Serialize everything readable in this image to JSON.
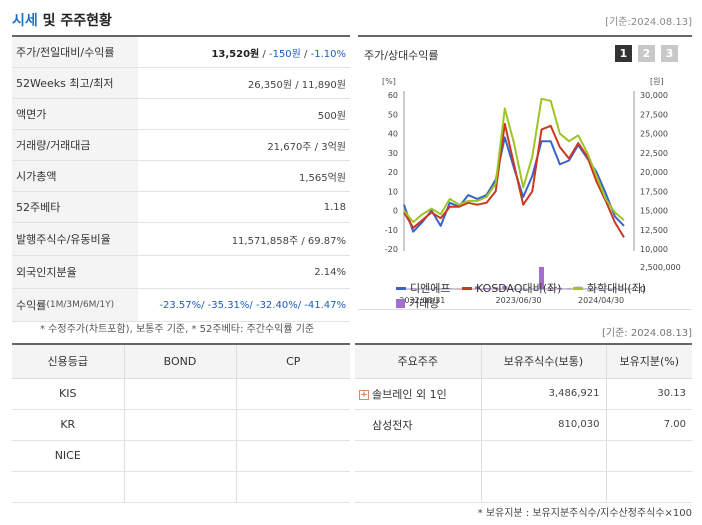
{
  "header": {
    "title_blue": "시세",
    "title_rest": " 및 주주현황",
    "date": "[기준:2024.08.13]"
  },
  "quote": [
    {
      "label": "주가/전일대비/수익률",
      "price": "13,520원",
      "sep1": " / ",
      "change": "-150원",
      "sep2": " / ",
      "rate": "-1.10%"
    },
    {
      "label": "52Weeks 최고/최저",
      "value": "26,350원 / 11,890원"
    },
    {
      "label": "액면가",
      "value": "500원"
    },
    {
      "label": "거래량/거래대금",
      "value": "21,670주 / 3억원"
    },
    {
      "label": "시가총액",
      "value": "1,565억원"
    },
    {
      "label": "52주베타",
      "value": "1.18"
    },
    {
      "label": "발행주식수/유동비율",
      "value": "11,571,858주 / 69.87%"
    },
    {
      "label": "외국인지분율",
      "value": "2.14%"
    },
    {
      "label": "수익률",
      "label_sub": " (1M/3M/6M/1Y)",
      "value": "-23.57%/ -35.31%/ -32.40%/ -41.47%"
    }
  ],
  "quote_note": "* 수정주가(차트포함), 보통주 기준, * 52주베타: 주간수익률 기준",
  "chart": {
    "title": "주가/상대수익률",
    "pages": [
      "1",
      "2",
      "3"
    ],
    "active_page": "1",
    "left_unit": "[%]",
    "right_unit": "[원]"
  },
  "chart_data": {
    "type": "line",
    "x_ticks": [
      "2022/08/31",
      "2023/06/30",
      "2024/04/30"
    ],
    "y_left_ticks": [
      "60",
      "50",
      "40",
      "30",
      "20",
      "10",
      "0",
      "-10",
      "-20"
    ],
    "y_right_ticks": [
      "30,000",
      "27,500",
      "25,000",
      "22,500",
      "20,000",
      "17,500",
      "15,000",
      "12,500",
      "10,000"
    ],
    "volume_ticks": [
      "2,500,000",
      "0"
    ],
    "ylim_left": [
      -20,
      60
    ],
    "ylim_right": [
      10000,
      30000
    ],
    "series": [
      {
        "name": "디엔에프",
        "color": "#3a63c7",
        "values": [
          3,
          -11,
          -6,
          0,
          -8,
          4,
          2,
          8,
          6,
          8,
          16,
          38,
          22,
          7,
          18,
          36,
          36,
          24,
          26,
          34,
          27,
          20,
          9,
          -3,
          -8
        ]
      },
      {
        "name": "KOSDAQ대비(좌)",
        "color": "#c9381f",
        "values": [
          -1,
          -9,
          -5,
          -1,
          -4,
          2,
          2,
          4,
          3,
          4,
          10,
          45,
          24,
          3,
          10,
          42,
          44,
          33,
          27,
          35,
          28,
          15,
          5,
          -6,
          -14
        ]
      },
      {
        "name": "화학대비(좌)",
        "color": "#9ec425",
        "values": [
          0,
          -6,
          -2,
          1,
          -2,
          6,
          3,
          5,
          5,
          7,
          14,
          53,
          35,
          12,
          28,
          58,
          57,
          40,
          36,
          39,
          30,
          18,
          6,
          -1,
          -5
        ]
      }
    ],
    "volume": {
      "name": "거래량",
      "color": "#a36fcf",
      "values": [
        40000,
        90000,
        50000,
        30000,
        40000,
        80000,
        60000,
        50000,
        300000,
        120000,
        200000,
        350000,
        60000,
        50000,
        40000,
        2650000,
        100000,
        120000,
        80000,
        280000,
        60000,
        50000,
        40000,
        30000,
        20000
      ]
    }
  },
  "credit": {
    "headers": [
      "신용등급",
      "BOND",
      "CP"
    ],
    "rows": [
      {
        "name": "KIS",
        "bond": "",
        "cp": ""
      },
      {
        "name": "KR",
        "bond": "",
        "cp": ""
      },
      {
        "name": "NICE",
        "bond": "",
        "cp": ""
      },
      {
        "name": "",
        "bond": "",
        "cp": ""
      }
    ]
  },
  "holders": {
    "date": "[기준: 2024.08.13]",
    "headers": [
      "주요주주",
      "보유주식수(보통)",
      "보유지분(%)"
    ],
    "rows": [
      {
        "name": "솔브레인 외 1인",
        "shares": "3,486,921",
        "pct": "30.13",
        "expand": "+"
      },
      {
        "name": "삼성전자",
        "shares": "810,030",
        "pct": "7.00"
      },
      {
        "name": "",
        "shares": "",
        "pct": ""
      },
      {
        "name": "",
        "shares": "",
        "pct": ""
      }
    ],
    "note": "* 보유지분 : 보유지분주식수/지수산정주식수×100"
  }
}
